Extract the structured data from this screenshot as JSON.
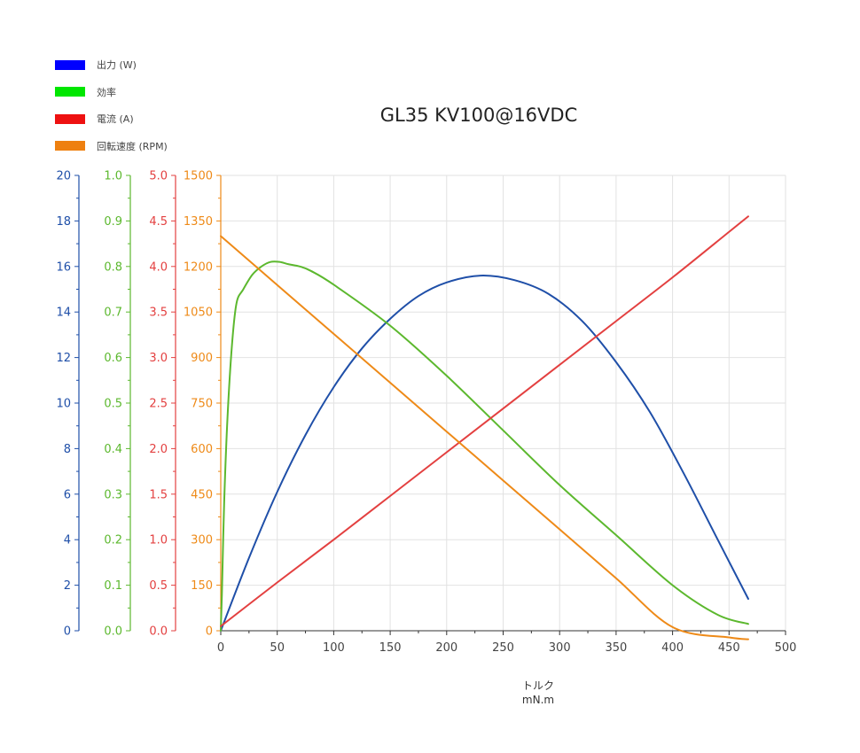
{
  "chart_data": {
    "type": "line",
    "title": "GL35 KV100@16VDC",
    "xlabel": "トルク",
    "xunit": "mN.m",
    "xlim": [
      0,
      500
    ],
    "xticks": [
      0,
      50,
      100,
      150,
      200,
      250,
      300,
      350,
      400,
      450,
      500
    ],
    "grid": true,
    "legend_position": "top-left",
    "axes": [
      {
        "id": "power",
        "color": "#1f4fa8",
        "min": 0,
        "max": 20,
        "ticks": [
          "0",
          "2",
          "4",
          "6",
          "8",
          "10",
          "12",
          "14",
          "16",
          "18",
          "20"
        ]
      },
      {
        "id": "efficiency",
        "color": "#5cb82e",
        "min": 0,
        "max": 1,
        "ticks": [
          "0.0",
          "0.1",
          "0.2",
          "0.3",
          "0.4",
          "0.5",
          "0.6",
          "0.7",
          "0.8",
          "0.9",
          "1.0"
        ]
      },
      {
        "id": "current",
        "color": "#e34040",
        "min": 0,
        "max": 5,
        "ticks": [
          "0.0",
          "0.5",
          "1.0",
          "1.5",
          "2.0",
          "2.5",
          "3.0",
          "3.5",
          "4.0",
          "4.5",
          "5.0"
        ]
      },
      {
        "id": "speed",
        "color": "#ee8a18",
        "min": 0,
        "max": 1500,
        "ticks": [
          "0",
          "150",
          "300",
          "450",
          "600",
          "750",
          "900",
          "1050",
          "1200",
          "1350",
          "1500"
        ]
      }
    ],
    "series": [
      {
        "name": "出力 (W)",
        "axis": "power",
        "color": "#1f4fa8",
        "legend_color": "#0000ff",
        "x": [
          0,
          25,
          50,
          75,
          100,
          125,
          150,
          175,
          200,
          230,
          260,
          290,
          320,
          350,
          380,
          410,
          440,
          467
        ],
        "y": [
          0,
          3.2,
          6.1,
          8.6,
          10.7,
          12.4,
          13.7,
          14.7,
          15.3,
          15.6,
          15.4,
          14.8,
          13.6,
          11.8,
          9.6,
          6.9,
          4.0,
          1.4
        ]
      },
      {
        "name": "効率",
        "axis": "efficiency",
        "color": "#5cb82e",
        "legend_color": "#00e600",
        "x": [
          0,
          1,
          3,
          6,
          10,
          14,
          20,
          28,
          36,
          44,
          52,
          60,
          70,
          80,
          100,
          150,
          200,
          250,
          300,
          350,
          400,
          440,
          467
        ],
        "y": [
          0,
          0.08,
          0.28,
          0.47,
          0.63,
          0.72,
          0.75,
          0.782,
          0.8,
          0.81,
          0.81,
          0.805,
          0.8,
          0.79,
          0.76,
          0.67,
          0.56,
          0.44,
          0.32,
          0.21,
          0.1,
          0.035,
          0.015
        ]
      },
      {
        "name": "電流 (A)",
        "axis": "current",
        "color": "#e34040",
        "legend_color": "#ee1111",
        "x": [
          0,
          50,
          100,
          150,
          200,
          250,
          300,
          350,
          400,
          450,
          467
        ],
        "y": [
          0.05,
          0.53,
          1.0,
          1.48,
          1.96,
          2.44,
          2.92,
          3.4,
          3.88,
          4.38,
          4.55
        ]
      },
      {
        "name": "回転速度 (RPM)",
        "axis": "speed",
        "color": "#ee8a18",
        "legend_color": "#ee8010",
        "x": [
          0,
          50,
          100,
          150,
          200,
          250,
          300,
          350,
          400,
          450,
          467
        ],
        "y": [
          1300,
          1139,
          978,
          817,
          656,
          495,
          334,
          173,
          12,
          -22,
          -28
        ]
      }
    ]
  }
}
